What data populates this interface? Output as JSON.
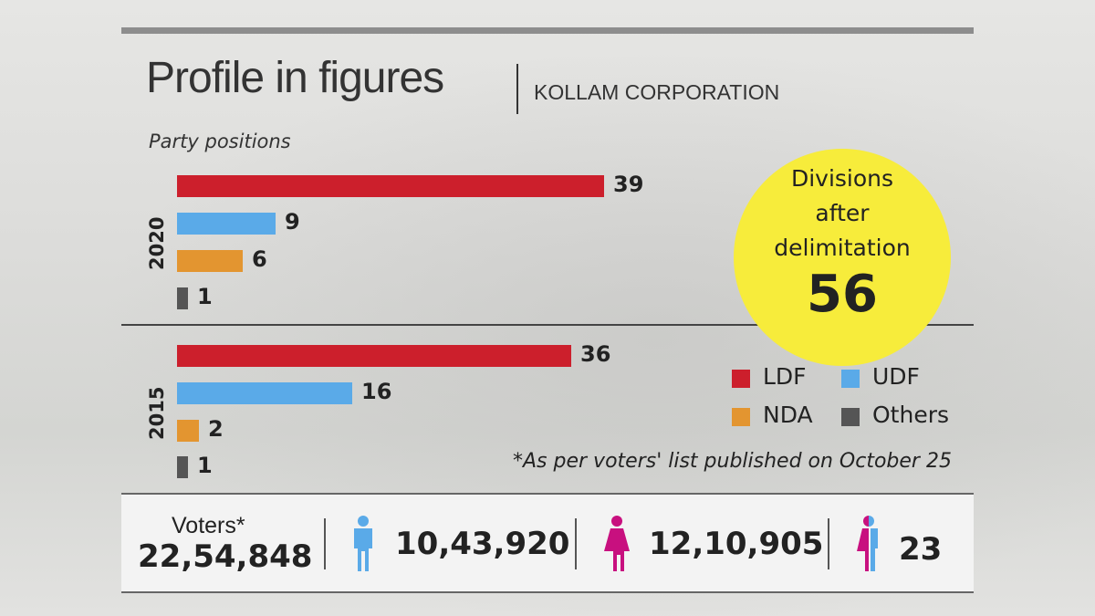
{
  "header": {
    "title": "Profile in figures",
    "subtitle": "KOLLAM CORPORATION"
  },
  "chart_data": {
    "type": "bar",
    "title": "Party positions",
    "categories": [
      "LDF",
      "UDF",
      "NDA",
      "Others"
    ],
    "series": [
      {
        "name": "2020",
        "values": [
          39,
          9,
          6,
          1
        ]
      },
      {
        "name": "2015",
        "values": [
          36,
          16,
          2,
          1
        ]
      }
    ],
    "colors": {
      "LDF": "#cc1f2c",
      "UDF": "#5aaae8",
      "NDA": "#e39530",
      "Others": "#555555"
    },
    "legend": [
      "LDF",
      "UDF",
      "NDA",
      "Others"
    ],
    "legend_position": "right"
  },
  "callout": {
    "lines": [
      "Divisions",
      "after",
      "delimitation"
    ],
    "value": "56"
  },
  "note": "*As per voters' list published on October 25",
  "voters": {
    "label": "Voters*",
    "total": "22,54,848",
    "male": "10,43,920",
    "female": "12,10,905",
    "transgender": "23",
    "colors": {
      "male": "#5aaae8",
      "female": "#c8107f"
    }
  }
}
